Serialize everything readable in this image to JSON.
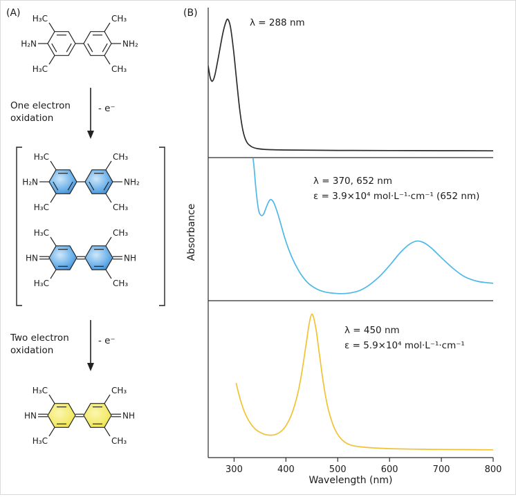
{
  "figure": {
    "panel_a_label": "(A)",
    "panel_b_label": "(B)"
  },
  "scheme": {
    "labels": {
      "h3c": "H₃C",
      "ch3": "CH₃",
      "h2n": "H₂N",
      "nh2": "NH₂",
      "hn": "HN",
      "nh": "NH"
    },
    "step1": {
      "line1": "One electron",
      "line2": "oxidation",
      "electron": "- e⁻"
    },
    "step2": {
      "line1": "Two electron",
      "line2": "oxidation",
      "electron": "- e⁻"
    },
    "colors": {
      "intermediate_ring": "#4a9fe0",
      "product_ring": "#f0e360"
    }
  },
  "chart_data": {
    "type": "line",
    "xlabel": "Wavelength (nm)",
    "ylabel": "Absorbance",
    "xlim": [
      250,
      800
    ],
    "xticks": [
      300,
      400,
      500,
      600,
      700,
      800
    ],
    "grid": false,
    "legend": false,
    "panels": [
      {
        "color": "#2b2b2b",
        "peaks_nm": [
          288
        ],
        "annotation_lambda": "λ = 288 nm",
        "x": [
          250,
          254,
          258,
          263,
          270,
          278,
          284,
          288,
          293,
          299,
          305,
          311,
          317,
          324,
          333,
          345,
          365,
          400,
          500,
          600,
          700,
          800
        ],
        "y": [
          0.63,
          0.545,
          0.52,
          0.565,
          0.7,
          0.86,
          0.945,
          0.965,
          0.91,
          0.74,
          0.52,
          0.31,
          0.165,
          0.085,
          0.05,
          0.035,
          0.028,
          0.025,
          0.022,
          0.021,
          0.02,
          0.019
        ]
      },
      {
        "color": "#4db8e8",
        "peaks_nm": [
          370,
          652
        ],
        "annotation_lambda": "λ = 370, 652 nm",
        "annotation_epsilon": "ε = 3.9×10⁴ mol·L⁻¹·cm⁻¹ (652 nm)",
        "x": [
          334,
          338,
          342,
          347,
          352,
          357,
          362,
          367,
          371,
          376,
          382,
          389,
          397,
          406,
          416,
          428,
          442,
          458,
          475,
          492,
          508,
          525,
          542,
          560,
          580,
          600,
          620,
          638,
          652,
          665,
          680,
          700,
          722,
          745,
          770,
          800
        ],
        "y": [
          1.12,
          1.0,
          0.82,
          0.66,
          0.615,
          0.625,
          0.675,
          0.72,
          0.735,
          0.715,
          0.655,
          0.565,
          0.455,
          0.35,
          0.26,
          0.175,
          0.105,
          0.06,
          0.035,
          0.025,
          0.022,
          0.028,
          0.045,
          0.085,
          0.15,
          0.235,
          0.33,
          0.395,
          0.42,
          0.41,
          0.37,
          0.295,
          0.215,
          0.15,
          0.115,
          0.1
        ]
      },
      {
        "color": "#f1c232",
        "peaks_nm": [
          450
        ],
        "annotation_lambda": "λ = 450 nm",
        "annotation_epsilon": "ε = 5.9×10⁴ mol·L⁻¹·cm⁻¹",
        "x": [
          304,
          312,
          320,
          330,
          340,
          350,
          360,
          370,
          380,
          390,
          400,
          410,
          420,
          428,
          435,
          441,
          446,
          450,
          454,
          459,
          465,
          472,
          480,
          490,
          500,
          512,
          525,
          545,
          570,
          600,
          640,
          680,
          720,
          760,
          800
        ],
        "y": [
          0.48,
          0.37,
          0.285,
          0.215,
          0.17,
          0.145,
          0.13,
          0.125,
          0.13,
          0.15,
          0.19,
          0.26,
          0.37,
          0.5,
          0.655,
          0.8,
          0.91,
          0.955,
          0.925,
          0.83,
          0.67,
          0.49,
          0.33,
          0.205,
          0.13,
          0.082,
          0.058,
          0.045,
          0.038,
          0.033,
          0.03,
          0.028,
          0.027,
          0.026,
          0.025
        ]
      }
    ]
  }
}
